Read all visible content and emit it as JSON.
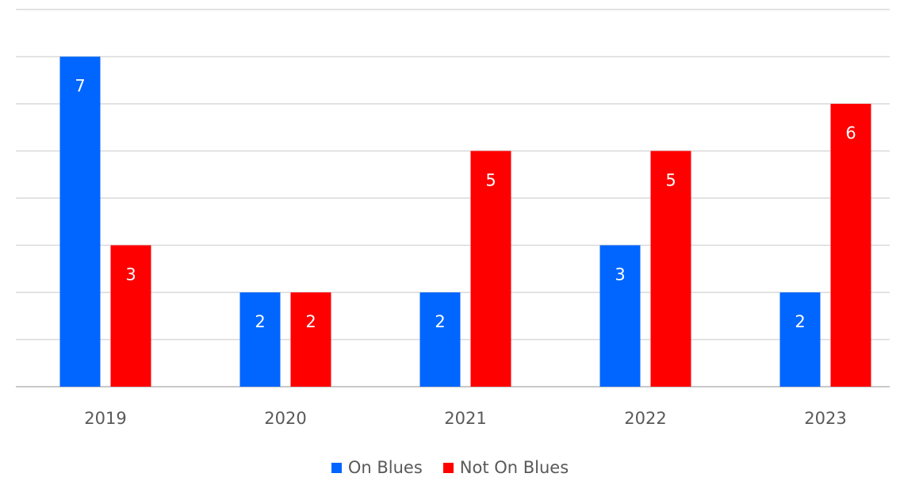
{
  "chart_data": {
    "type": "bar",
    "categories": [
      "2019",
      "2020",
      "2021",
      "2022",
      "2023"
    ],
    "series": [
      {
        "name": "On Blues",
        "values": [
          7,
          2,
          2,
          3,
          2
        ],
        "color": "#0066FF"
      },
      {
        "name": "Not On Blues",
        "values": [
          3,
          2,
          5,
          5,
          6
        ],
        "color": "#FF0000"
      }
    ],
    "ylim": [
      0,
      8
    ],
    "y_gridline_step": 1,
    "grid": true,
    "data_labels": true,
    "legend_position": "bottom",
    "y_axis_labels_shown": false
  }
}
